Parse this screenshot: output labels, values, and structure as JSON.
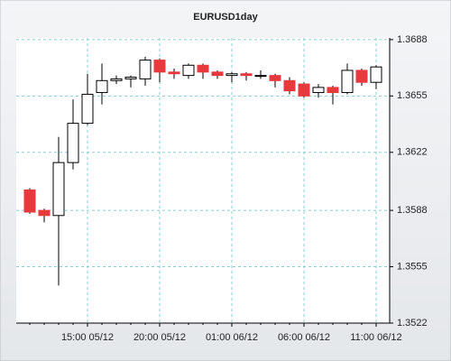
{
  "chart_data": {
    "type": "candlestick",
    "title": "EURUSD1day",
    "categories": [
      null,
      null,
      null,
      null,
      "15:00 05/12",
      null,
      null,
      null,
      null,
      "20:00 05/12",
      null,
      null,
      null,
      null,
      "01:00 06/12",
      null,
      null,
      null,
      null,
      "06:00 06/12",
      null,
      null,
      null,
      null,
      "11:00 06/12"
    ],
    "open": [
      1.36,
      1.3588,
      1.3585,
      1.3616,
      1.3639,
      1.3657,
      1.3664,
      1.3665,
      1.3665,
      1.3676,
      1.3669,
      1.3667,
      1.3673,
      1.3669,
      1.3667,
      1.3668,
      1.3667,
      1.3667,
      1.3664,
      1.3662,
      1.3657,
      1.366,
      1.3657,
      1.367,
      1.3663
    ],
    "high": [
      1.3601,
      1.3589,
      1.3631,
      1.3653,
      1.3668,
      1.3674,
      1.3667,
      1.3667,
      1.3678,
      1.3677,
      1.3671,
      1.3674,
      1.3674,
      1.367,
      1.3669,
      1.3669,
      1.367,
      1.3668,
      1.3666,
      1.3663,
      1.3662,
      1.3661,
      1.3674,
      1.3671,
      1.3673
    ],
    "low": [
      1.3586,
      1.3581,
      1.3544,
      1.3612,
      1.3638,
      1.365,
      1.3662,
      1.366,
      1.3661,
      1.3663,
      1.3665,
      1.3665,
      1.3665,
      1.3665,
      1.3663,
      1.3664,
      1.3665,
      1.366,
      1.3656,
      1.3654,
      1.3654,
      1.365,
      1.3656,
      1.3661,
      1.3659
    ],
    "close": [
      1.3587,
      1.3585,
      1.3616,
      1.3639,
      1.3656,
      1.3664,
      1.3665,
      1.3666,
      1.3676,
      1.3669,
      1.3668,
      1.3673,
      1.3669,
      1.3667,
      1.3668,
      1.3667,
      1.3667,
      1.3664,
      1.3658,
      1.3655,
      1.366,
      1.3657,
      1.367,
      1.3663,
      1.3672
    ],
    "up_color": "#ffffff",
    "down_color": "#e8383d",
    "ylim": [
      1.3522,
      1.3689
    ],
    "yticks": [
      1.3522,
      1.3555,
      1.3588,
      1.3622,
      1.3655,
      1.3688
    ],
    "grid": true
  }
}
